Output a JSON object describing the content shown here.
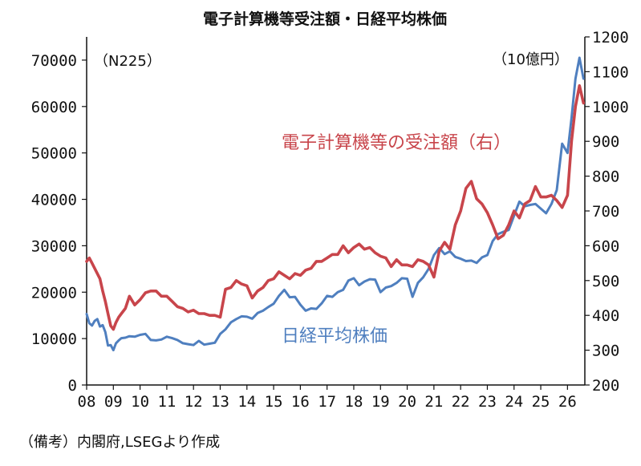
{
  "chart_data": {
    "type": "line",
    "title": "電子計算機等受注額・日経平均株価",
    "source_note": "（備考）内閣府,LSEGより作成",
    "left_axis_note": "（N225）",
    "right_axis_note": "（10億円）",
    "x_ticks": [
      "08",
      "09",
      "10",
      "11",
      "12",
      "13",
      "14",
      "15",
      "16",
      "17",
      "18",
      "19",
      "20",
      "21",
      "22",
      "23",
      "24",
      "25",
      "26"
    ],
    "x_range": [
      2008.0,
      2026.65
    ],
    "y_left": {
      "range": [
        0,
        75000
      ],
      "ticks": [
        0,
        10000,
        20000,
        30000,
        40000,
        50000,
        60000,
        70000
      ]
    },
    "y_right": {
      "range": [
        200,
        1200
      ],
      "ticks": [
        200,
        300,
        400,
        500,
        600,
        700,
        800,
        900,
        1000,
        1100,
        1200
      ]
    },
    "colors": {
      "nikkei": "#4f7fbf",
      "orders": "#c8454b",
      "axis": "#111111"
    },
    "series": [
      {
        "name": "電子計算機等の受注額（右）",
        "key": "orders",
        "axis": "right",
        "x": [
          2008.0,
          2008.1,
          2008.2,
          2008.3,
          2008.4,
          2008.5,
          2008.6,
          2008.7,
          2008.8,
          2008.9,
          2009.0,
          2009.1,
          2009.2,
          2009.3,
          2009.45,
          2009.6,
          2009.8,
          2010.0,
          2010.2,
          2010.4,
          2010.6,
          2010.8,
          2011.0,
          2011.2,
          2011.4,
          2011.6,
          2011.8,
          2012.0,
          2012.2,
          2012.4,
          2012.6,
          2012.8,
          2013.0,
          2013.2,
          2013.4,
          2013.6,
          2013.8,
          2014.0,
          2014.2,
          2014.4,
          2014.6,
          2014.8,
          2015.0,
          2015.2,
          2015.4,
          2015.6,
          2015.8,
          2016.0,
          2016.2,
          2016.4,
          2016.6,
          2016.8,
          2017.0,
          2017.2,
          2017.4,
          2017.6,
          2017.8,
          2018.0,
          2018.2,
          2018.4,
          2018.6,
          2018.8,
          2019.0,
          2019.2,
          2019.4,
          2019.6,
          2019.8,
          2020.0,
          2020.2,
          2020.4,
          2020.6,
          2020.8,
          2021.0,
          2021.2,
          2021.4,
          2021.6,
          2021.8,
          2022.0,
          2022.2,
          2022.4,
          2022.6,
          2022.8,
          2023.0,
          2023.2,
          2023.4,
          2023.6,
          2023.8,
          2024.0,
          2024.2,
          2024.4,
          2024.6,
          2024.8,
          2025.0,
          2025.2,
          2025.4,
          2025.6,
          2025.8,
          2026.0,
          2026.15,
          2026.3,
          2026.45,
          2026.6
        ],
        "values": [
          555,
          565,
          550,
          535,
          520,
          505,
          470,
          440,
          405,
          370,
          360,
          380,
          395,
          405,
          420,
          455,
          430,
          445,
          465,
          470,
          470,
          455,
          455,
          440,
          425,
          420,
          410,
          415,
          405,
          405,
          400,
          400,
          395,
          475,
          480,
          500,
          490,
          485,
          450,
          470,
          480,
          500,
          505,
          525,
          515,
          505,
          520,
          515,
          530,
          535,
          555,
          555,
          565,
          575,
          575,
          600,
          580,
          595,
          605,
          590,
          595,
          580,
          570,
          565,
          540,
          560,
          545,
          545,
          540,
          560,
          555,
          545,
          510,
          585,
          610,
          590,
          660,
          700,
          765,
          785,
          735,
          720,
          695,
          660,
          620,
          630,
          660,
          700,
          680,
          720,
          730,
          770,
          740,
          740,
          745,
          730,
          710,
          745,
          900,
          1000,
          1060,
          1010
        ]
      },
      {
        "name": "日経平均株価",
        "key": "nikkei",
        "axis": "left",
        "x": [
          2008.0,
          2008.1,
          2008.2,
          2008.3,
          2008.4,
          2008.5,
          2008.6,
          2008.7,
          2008.8,
          2008.9,
          2009.0,
          2009.1,
          2009.2,
          2009.3,
          2009.45,
          2009.6,
          2009.8,
          2010.0,
          2010.2,
          2010.4,
          2010.6,
          2010.8,
          2011.0,
          2011.2,
          2011.4,
          2011.6,
          2011.8,
          2012.0,
          2012.2,
          2012.4,
          2012.6,
          2012.8,
          2013.0,
          2013.2,
          2013.4,
          2013.6,
          2013.8,
          2014.0,
          2014.2,
          2014.4,
          2014.6,
          2014.8,
          2015.0,
          2015.2,
          2015.4,
          2015.6,
          2015.8,
          2016.0,
          2016.2,
          2016.4,
          2016.6,
          2016.8,
          2017.0,
          2017.2,
          2017.4,
          2017.6,
          2017.8,
          2018.0,
          2018.2,
          2018.4,
          2018.6,
          2018.8,
          2019.0,
          2019.2,
          2019.4,
          2019.6,
          2019.8,
          2020.0,
          2020.2,
          2020.4,
          2020.6,
          2020.8,
          2021.0,
          2021.2,
          2021.4,
          2021.6,
          2021.8,
          2022.0,
          2022.2,
          2022.4,
          2022.6,
          2022.8,
          2023.0,
          2023.2,
          2023.4,
          2023.6,
          2023.8,
          2024.0,
          2024.2,
          2024.4,
          2024.6,
          2024.8,
          2025.0,
          2025.2,
          2025.4,
          2025.6,
          2025.8,
          2026.0,
          2026.15,
          2026.3,
          2026.45,
          2026.6
        ],
        "values": [
          15300,
          13300,
          12800,
          13800,
          14200,
          12600,
          12900,
          11400,
          8500,
          8600,
          7500,
          9000,
          9600,
          10100,
          10200,
          10500,
          10400,
          10800,
          11000,
          9700,
          9600,
          9800,
          10400,
          10100,
          9700,
          9000,
          8800,
          8600,
          9500,
          8700,
          8900,
          9100,
          11000,
          12000,
          13500,
          14200,
          14800,
          14700,
          14300,
          15500,
          16000,
          16800,
          17500,
          19200,
          20500,
          18900,
          19000,
          17300,
          16000,
          16500,
          16400,
          17600,
          19200,
          19000,
          20000,
          20500,
          22500,
          23000,
          21500,
          22300,
          22800,
          22700,
          20000,
          21000,
          21300,
          22000,
          23000,
          22900,
          19000,
          22000,
          23200,
          25000,
          28000,
          29500,
          28200,
          28800,
          27600,
          27200,
          26700,
          26800,
          26300,
          27500,
          28000,
          31000,
          32500,
          33000,
          33400,
          36500,
          39500,
          38500,
          38800,
          39000,
          38000,
          37000,
          39000,
          42000,
          52000,
          50000,
          57500,
          66000,
          70500,
          66000
        ]
      }
    ]
  }
}
